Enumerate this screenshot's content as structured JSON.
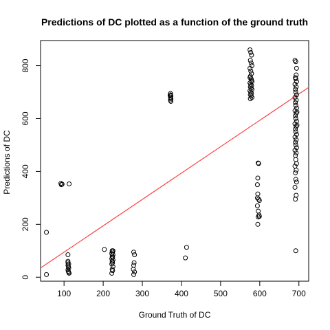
{
  "chart_data": {
    "type": "scatter",
    "title": "Predictions of DC plotted as a function of the ground truth",
    "xlabel": "Ground Truth of DC",
    "ylabel": "Predictions of DC",
    "xlim": [
      40,
      725
    ],
    "ylim": [
      -15,
      895
    ],
    "x_ticks": [
      100,
      200,
      300,
      400,
      500,
      600,
      700
    ],
    "y_ticks": [
      0,
      200,
      400,
      600,
      800
    ],
    "grid": false,
    "legend": "none",
    "point_color": "#000000",
    "line_color": "#ff4040",
    "fit_line": {
      "x": [
        40,
        725
      ],
      "y": [
        35,
        718
      ]
    },
    "points": [
      {
        "x": 55,
        "y": 170
      },
      {
        "x": 55,
        "y": 10
      },
      {
        "x": 92,
        "y": 355
      },
      {
        "x": 93,
        "y": 350
      },
      {
        "x": 95,
        "y": 352
      },
      {
        "x": 113,
        "y": 353
      },
      {
        "x": 110,
        "y": 85
      },
      {
        "x": 110,
        "y": 60
      },
      {
        "x": 112,
        "y": 50
      },
      {
        "x": 110,
        "y": 45
      },
      {
        "x": 111,
        "y": 40
      },
      {
        "x": 112,
        "y": 35
      },
      {
        "x": 110,
        "y": 28
      },
      {
        "x": 111,
        "y": 22
      },
      {
        "x": 112,
        "y": 18
      },
      {
        "x": 113,
        "y": 15
      },
      {
        "x": 110,
        "y": 55
      },
      {
        "x": 203,
        "y": 105
      },
      {
        "x": 223,
        "y": 100
      },
      {
        "x": 224,
        "y": 95
      },
      {
        "x": 222,
        "y": 90
      },
      {
        "x": 225,
        "y": 85
      },
      {
        "x": 223,
        "y": 80
      },
      {
        "x": 224,
        "y": 75
      },
      {
        "x": 222,
        "y": 70
      },
      {
        "x": 225,
        "y": 65
      },
      {
        "x": 223,
        "y": 60
      },
      {
        "x": 224,
        "y": 55
      },
      {
        "x": 222,
        "y": 50
      },
      {
        "x": 225,
        "y": 40
      },
      {
        "x": 223,
        "y": 30
      },
      {
        "x": 224,
        "y": 25
      },
      {
        "x": 222,
        "y": 15
      },
      {
        "x": 225,
        "y": 100
      },
      {
        "x": 278,
        "y": 95
      },
      {
        "x": 280,
        "y": 85
      },
      {
        "x": 279,
        "y": 55
      },
      {
        "x": 278,
        "y": 45
      },
      {
        "x": 277,
        "y": 30
      },
      {
        "x": 280,
        "y": 20
      },
      {
        "x": 278,
        "y": 10
      },
      {
        "x": 372,
        "y": 695
      },
      {
        "x": 372,
        "y": 690
      },
      {
        "x": 373,
        "y": 685
      },
      {
        "x": 372,
        "y": 680
      },
      {
        "x": 373,
        "y": 675
      },
      {
        "x": 372,
        "y": 670
      },
      {
        "x": 373,
        "y": 665
      },
      {
        "x": 371,
        "y": 688
      },
      {
        "x": 413,
        "y": 113
      },
      {
        "x": 410,
        "y": 73
      },
      {
        "x": 575,
        "y": 860
      },
      {
        "x": 577,
        "y": 850
      },
      {
        "x": 579,
        "y": 840
      },
      {
        "x": 576,
        "y": 820
      },
      {
        "x": 578,
        "y": 810
      },
      {
        "x": 580,
        "y": 800
      },
      {
        "x": 575,
        "y": 790
      },
      {
        "x": 577,
        "y": 780
      },
      {
        "x": 579,
        "y": 770
      },
      {
        "x": 576,
        "y": 760
      },
      {
        "x": 578,
        "y": 750
      },
      {
        "x": 580,
        "y": 740
      },
      {
        "x": 575,
        "y": 735
      },
      {
        "x": 577,
        "y": 730
      },
      {
        "x": 579,
        "y": 725
      },
      {
        "x": 576,
        "y": 720
      },
      {
        "x": 578,
        "y": 715
      },
      {
        "x": 580,
        "y": 710
      },
      {
        "x": 575,
        "y": 705
      },
      {
        "x": 577,
        "y": 700
      },
      {
        "x": 579,
        "y": 695
      },
      {
        "x": 576,
        "y": 690
      },
      {
        "x": 578,
        "y": 685
      },
      {
        "x": 580,
        "y": 680
      },
      {
        "x": 576,
        "y": 675
      },
      {
        "x": 579,
        "y": 745
      },
      {
        "x": 575,
        "y": 755
      },
      {
        "x": 596,
        "y": 432
      },
      {
        "x": 597,
        "y": 430
      },
      {
        "x": 595,
        "y": 375
      },
      {
        "x": 594,
        "y": 350
      },
      {
        "x": 595,
        "y": 315
      },
      {
        "x": 594,
        "y": 300
      },
      {
        "x": 597,
        "y": 295
      },
      {
        "x": 599,
        "y": 290
      },
      {
        "x": 594,
        "y": 270
      },
      {
        "x": 596,
        "y": 250
      },
      {
        "x": 598,
        "y": 235
      },
      {
        "x": 599,
        "y": 230
      },
      {
        "x": 596,
        "y": 228
      },
      {
        "x": 595,
        "y": 200
      },
      {
        "x": 690,
        "y": 820
      },
      {
        "x": 692,
        "y": 815
      },
      {
        "x": 694,
        "y": 790
      },
      {
        "x": 693,
        "y": 765
      },
      {
        "x": 691,
        "y": 755
      },
      {
        "x": 692,
        "y": 750
      },
      {
        "x": 694,
        "y": 740
      },
      {
        "x": 690,
        "y": 730
      },
      {
        "x": 693,
        "y": 720
      },
      {
        "x": 691,
        "y": 710
      },
      {
        "x": 692,
        "y": 700
      },
      {
        "x": 694,
        "y": 690
      },
      {
        "x": 690,
        "y": 680
      },
      {
        "x": 693,
        "y": 670
      },
      {
        "x": 691,
        "y": 660
      },
      {
        "x": 692,
        "y": 650
      },
      {
        "x": 694,
        "y": 640
      },
      {
        "x": 690,
        "y": 630
      },
      {
        "x": 693,
        "y": 620
      },
      {
        "x": 691,
        "y": 610
      },
      {
        "x": 692,
        "y": 600
      },
      {
        "x": 694,
        "y": 590
      },
      {
        "x": 690,
        "y": 580
      },
      {
        "x": 693,
        "y": 570
      },
      {
        "x": 691,
        "y": 560
      },
      {
        "x": 692,
        "y": 550
      },
      {
        "x": 694,
        "y": 540
      },
      {
        "x": 690,
        "y": 530
      },
      {
        "x": 693,
        "y": 520
      },
      {
        "x": 691,
        "y": 510
      },
      {
        "x": 692,
        "y": 500
      },
      {
        "x": 694,
        "y": 490
      },
      {
        "x": 690,
        "y": 480
      },
      {
        "x": 693,
        "y": 470
      },
      {
        "x": 691,
        "y": 460
      },
      {
        "x": 692,
        "y": 445
      },
      {
        "x": 694,
        "y": 430
      },
      {
        "x": 690,
        "y": 420
      },
      {
        "x": 693,
        "y": 405
      },
      {
        "x": 691,
        "y": 395
      },
      {
        "x": 692,
        "y": 370
      },
      {
        "x": 694,
        "y": 360
      },
      {
        "x": 690,
        "y": 340
      },
      {
        "x": 693,
        "y": 310
      },
      {
        "x": 691,
        "y": 295
      },
      {
        "x": 692,
        "y": 100
      },
      {
        "x": 695,
        "y": 625
      },
      {
        "x": 695,
        "y": 575
      }
    ]
  }
}
